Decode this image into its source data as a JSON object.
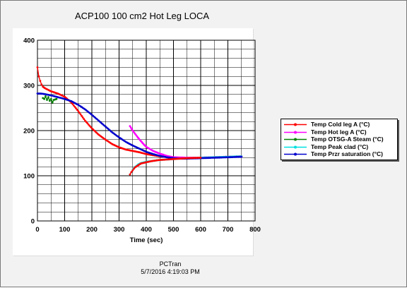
{
  "chart_data": {
    "type": "line",
    "title": "ACP100 100 cm2 Hot Leg LOCA",
    "xlabel": "Time (sec)",
    "ylabel": "",
    "xlim": [
      0,
      800
    ],
    "ylim": [
      0,
      400
    ],
    "xticks": [
      "0",
      "100",
      "200",
      "300",
      "400",
      "500",
      "600",
      "700",
      "800"
    ],
    "yticks": [
      "0",
      "100",
      "200",
      "300",
      "400"
    ],
    "grid": true,
    "legend_position": "right",
    "series": [
      {
        "name": "Temp Cold leg A (°C)",
        "color": "#ff0000",
        "x": [
          0,
          5,
          10,
          15,
          20,
          30,
          50,
          75,
          100,
          125,
          150,
          175,
          200,
          225,
          250,
          275,
          300,
          325,
          350,
          375,
          400,
          450,
          500,
          550,
          600,
          650,
          700,
          750
        ],
        "y": [
          340,
          320,
          310,
          302,
          297,
          293,
          287,
          282,
          275,
          262,
          243,
          222,
          205,
          191,
          180,
          170,
          163,
          158,
          155,
          152,
          148,
          143,
          140,
          139,
          140,
          141,
          142,
          143
        ]
      },
      {
        "name": "Temp Hot leg A (°C)",
        "color": "#ff00ff",
        "x": [
          340,
          350,
          360,
          370,
          380,
          390,
          400,
          425,
          450,
          475,
          500,
          550,
          600,
          650,
          700,
          750
        ],
        "y": [
          210,
          200,
          192,
          184,
          177,
          170,
          164,
          155,
          149,
          144,
          141,
          140,
          140,
          141,
          142,
          143
        ]
      },
      {
        "name": "Temp OTSG-A Steam (°C)",
        "color": "#008000",
        "x": [
          20,
          25,
          30,
          35,
          40,
          45,
          50,
          55,
          60,
          70
        ],
        "y": [
          272,
          270,
          276,
          268,
          274,
          266,
          270,
          262,
          268,
          270
        ]
      },
      {
        "name": "Temp Peak clad (°C)",
        "color": "#00e0e0",
        "x": [
          340,
          345,
          350,
          360,
          370,
          380,
          400,
          425,
          450,
          500,
          550,
          600,
          650,
          700,
          750
        ],
        "y": [
          103,
          108,
          113,
          120,
          125,
          128,
          131,
          133,
          135,
          137,
          139,
          140,
          141,
          142,
          143
        ]
      },
      {
        "name": "Temp Przr saturation (°C)",
        "color": "#0000cc",
        "x": [
          0,
          10,
          25,
          50,
          75,
          100,
          125,
          150,
          175,
          200,
          225,
          250,
          275,
          300,
          325,
          350,
          375,
          400,
          425,
          450,
          475,
          500,
          525,
          550,
          600,
          650,
          700,
          750
        ],
        "y": [
          282,
          282,
          281,
          278,
          274,
          270,
          265,
          257,
          247,
          235,
          222,
          209,
          196,
          185,
          175,
          167,
          160,
          153,
          148,
          144,
          141,
          139,
          138,
          138,
          139,
          140,
          141,
          142
        ]
      },
      {
        "name": "",
        "color": "#ff0000",
        "x": [
          340,
          345,
          350,
          355,
          360,
          370,
          380,
          400,
          425,
          450,
          500,
          550,
          600
        ],
        "y": [
          103,
          108,
          112,
          116,
          119,
          123,
          127,
          130,
          133,
          135,
          137,
          139,
          140
        ]
      }
    ]
  },
  "footer": {
    "line1": "PCTran",
    "line2": "5/7/2016 4:19:03 PM"
  }
}
